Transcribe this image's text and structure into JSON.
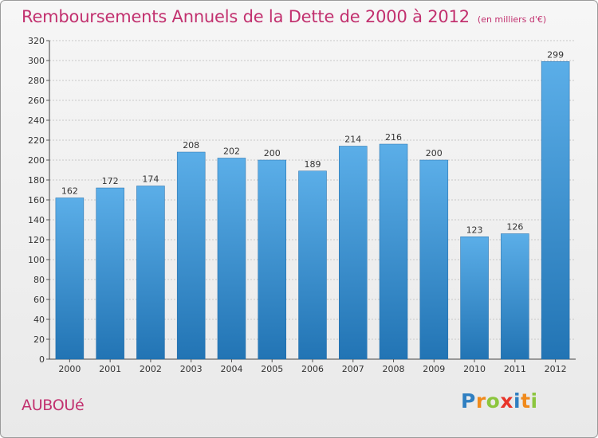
{
  "header": {
    "title": "Remboursements Annuels de la Dette de 2000 à 2012",
    "subtitle": "(en milliers d'€)"
  },
  "footer": {
    "commune": "AUBOUé",
    "logo_text": "Proxiti",
    "logo_letters": [
      {
        "ch": "P",
        "color": "#2f7fc1"
      },
      {
        "ch": "r",
        "color": "#f08a1c"
      },
      {
        "ch": "o",
        "color": "#8cc63e"
      },
      {
        "ch": "x",
        "color": "#e8352a"
      },
      {
        "ch": "i",
        "color": "#2f7fc1"
      },
      {
        "ch": "t",
        "color": "#f08a1c"
      },
      {
        "ch": "i",
        "color": "#8cc63e"
      }
    ]
  },
  "colors": {
    "accent": "#c2316f",
    "bar_top": "#5baee8",
    "bar_bottom": "#2274b4",
    "grid": "#c8c8c8"
  },
  "chart_data": {
    "type": "bar",
    "title": "Remboursements Annuels de la Dette de 2000 à 2012",
    "subtitle": "(en milliers d'€)",
    "categories": [
      "2000",
      "2001",
      "2002",
      "2003",
      "2004",
      "2005",
      "2006",
      "2007",
      "2008",
      "2009",
      "2010",
      "2011",
      "2012"
    ],
    "values": [
      162,
      172,
      174,
      208,
      202,
      200,
      189,
      214,
      216,
      200,
      123,
      126,
      299
    ],
    "ylim": [
      0,
      320
    ],
    "ytick_step": 20,
    "xlabel": "",
    "ylabel": "",
    "grid": true,
    "data_labels": true
  }
}
